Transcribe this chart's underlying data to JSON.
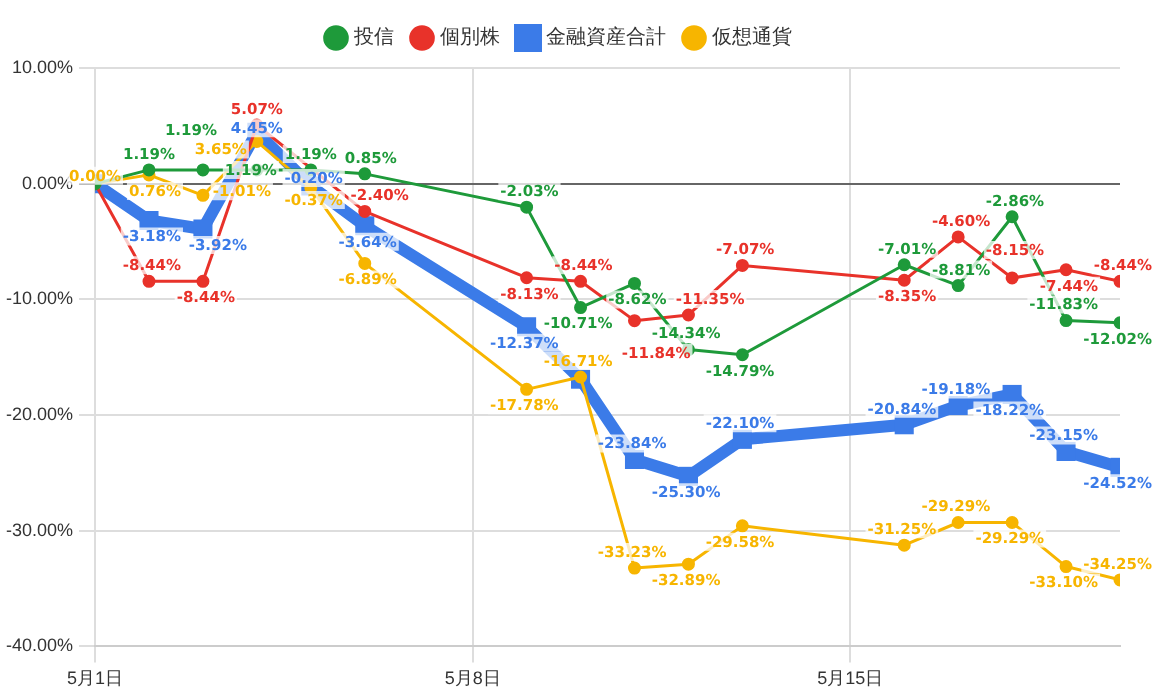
{
  "chart_data": {
    "type": "line",
    "x": [
      "--05-01",
      "--05-02",
      "--05-03",
      "--05-04",
      "--05-05",
      "--05-06",
      "--05-09",
      "--05-10",
      "--05-11",
      "--05-12",
      "--05-13",
      "--05-16",
      "--05-17",
      "--05-18",
      "--05-19",
      "--05-20"
    ],
    "series": [
      {
        "name": "投信",
        "color": "#1e9a3a",
        "values": [
          0,
          1.19,
          1.19,
          1.19,
          1.19,
          0.85,
          -2.03,
          -10.71,
          -8.62,
          -14.34,
          -14.79,
          -7.01,
          -8.81,
          -2.86,
          -11.83,
          -12.02
        ],
        "value_labels": [
          null,
          "1.19%",
          "1.19%",
          "1.19%",
          "1.19%",
          "0.85%",
          "-2.03%",
          "-10.71%",
          "-8.62%",
          "-14.34%",
          "-14.79%",
          "-7.01%",
          "-8.81%",
          "-2.86%",
          "-11.83%",
          "-12.02%"
        ]
      },
      {
        "name": "個別株",
        "color": "#e8322a",
        "values": [
          0,
          -8.44,
          -8.44,
          5.07,
          null,
          -2.4,
          -8.13,
          -8.44,
          -11.84,
          -11.35,
          -7.07,
          -8.35,
          -4.6,
          -8.15,
          -7.44,
          -8.44
        ],
        "value_labels": [
          null,
          "-8.44%",
          "-8.44%",
          "5.07%",
          null,
          "-2.40%",
          "-8.13%",
          "-8.44%",
          "-11.84%",
          "-11.35%",
          "-7.07%",
          "-8.35%",
          "-4.60%",
          "-8.15%",
          "-7.44%",
          "-8.44%"
        ]
      },
      {
        "name": "金融資産合計",
        "color": "#3b7be8",
        "marker": "square",
        "values": [
          0,
          -3.18,
          -3.92,
          4.45,
          -0.2,
          -3.64,
          -12.37,
          -16.9,
          -23.84,
          -25.3,
          -22.1,
          -20.84,
          -19.18,
          -18.22,
          -23.15,
          -24.52
        ],
        "value_labels": [
          null,
          "-3.18%",
          "-3.92%",
          "4.45%",
          "-0.20%",
          "-3.64%",
          "-12.37%",
          null,
          "-23.84%",
          "-25.30%",
          "-22.10%",
          "-20.84%",
          "-19.18%",
          "-18.22%",
          "-23.15%",
          "-24.52%"
        ]
      },
      {
        "name": "仮想通貨",
        "color": "#f7b500",
        "values": [
          0,
          0.76,
          -1.01,
          3.65,
          -0.37,
          -6.89,
          -17.78,
          -16.71,
          -33.23,
          -32.89,
          -29.58,
          -31.25,
          -29.29,
          -29.29,
          -33.1,
          -34.25
        ],
        "value_labels": [
          "0.00%",
          "0.76%",
          "-1.01%",
          "3.65%",
          "-0.37%",
          "-6.89%",
          "-17.78%",
          "-16.71%",
          "-33.23%",
          "-32.89%",
          "-29.58%",
          "-31.25%",
          "-29.29%",
          "-29.29%",
          "-33.10%",
          "-34.25%"
        ]
      }
    ],
    "xlim": [
      "--05-01",
      "--05-20"
    ],
    "xticks": [
      {
        "value": "--05-01",
        "label": "5月1日"
      },
      {
        "value": "--05-08",
        "label": "5月8日"
      },
      {
        "value": "--05-15",
        "label": "5月15日"
      }
    ],
    "ylim": [
      -40,
      10
    ],
    "yticks": [
      {
        "value": -40,
        "label": "-40.00%"
      },
      {
        "value": -30,
        "label": "-30.00%"
      },
      {
        "value": -20,
        "label": "-20.00%"
      },
      {
        "value": -10,
        "label": "-10.00%"
      },
      {
        "value": 0,
        "label": "0.00%"
      },
      {
        "value": 10,
        "label": "10.00%"
      }
    ],
    "grid": true,
    "legend": "top",
    "marker": "circle",
    "line_style": "solid"
  }
}
